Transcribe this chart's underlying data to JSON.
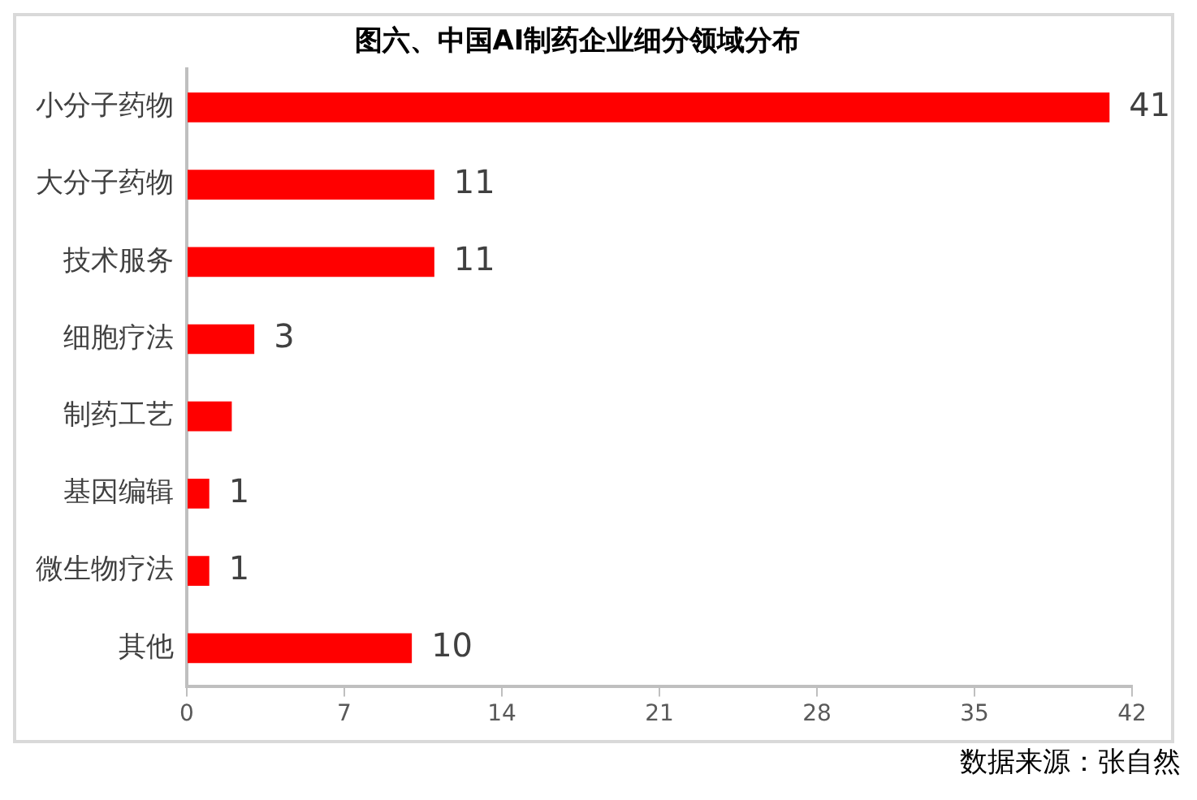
{
  "chart_data": {
    "type": "bar",
    "orientation": "horizontal",
    "title": "图六、中国AI制药企业细分领域分布",
    "categories": [
      "小分子药物",
      "大分子药物",
      "技术服务",
      "细胞疗法",
      "制药工艺",
      "基因编辑",
      "微生物疗法",
      "其他"
    ],
    "values": [
      41,
      11,
      11,
      3,
      2,
      1,
      1,
      10
    ],
    "value_labels": [
      "41",
      "11",
      "11",
      "3",
      null,
      "1",
      "1",
      "10"
    ],
    "color": "#ff0000",
    "xlim": [
      0,
      42
    ],
    "xticks": [
      0,
      7,
      14,
      21,
      28,
      35,
      42
    ],
    "grid": false,
    "legend": false,
    "annotations": [
      "数据来源：张自然"
    ]
  }
}
